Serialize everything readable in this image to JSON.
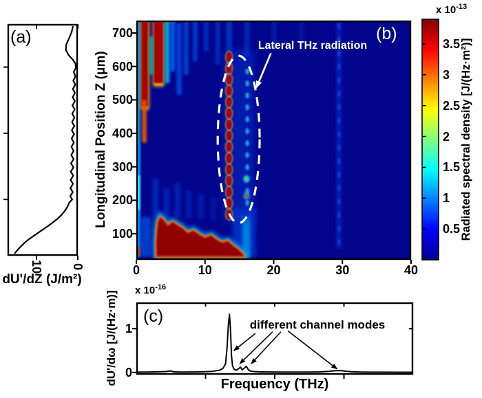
{
  "chart_data": [
    {
      "id": "panel_a",
      "type": "line",
      "title": "(a)",
      "xlabel": "dU'/dZ (J/m²)",
      "xlim": [
        17,
        0
      ],
      "x_ticks": [
        "10",
        "0"
      ],
      "ylim": [
        30,
        730
      ],
      "y_ticks_unlabeled": [
        600,
        400,
        200
      ],
      "points": [
        [
          1.2,
          722
        ],
        [
          1.5,
          705
        ],
        [
          2.2,
          685
        ],
        [
          2.8,
          668
        ],
        [
          2.9,
          652
        ],
        [
          2.2,
          636
        ],
        [
          1.2,
          622
        ],
        [
          0.55,
          610
        ],
        [
          0.5,
          597
        ],
        [
          1.0,
          585
        ],
        [
          0.55,
          572
        ],
        [
          1.1,
          559
        ],
        [
          0.6,
          547
        ],
        [
          1.2,
          534
        ],
        [
          0.7,
          522
        ],
        [
          1.25,
          509
        ],
        [
          0.7,
          497
        ],
        [
          1.3,
          484
        ],
        [
          0.75,
          472
        ],
        [
          1.35,
          459
        ],
        [
          0.8,
          447
        ],
        [
          1.4,
          434
        ],
        [
          0.85,
          422
        ],
        [
          1.45,
          409
        ],
        [
          0.9,
          397
        ],
        [
          1.5,
          384
        ],
        [
          0.95,
          372
        ],
        [
          1.55,
          359
        ],
        [
          1.0,
          347
        ],
        [
          1.6,
          334
        ],
        [
          1.0,
          322
        ],
        [
          1.65,
          309
        ],
        [
          1.05,
          297
        ],
        [
          1.7,
          284
        ],
        [
          1.1,
          272
        ],
        [
          1.75,
          259
        ],
        [
          1.15,
          247
        ],
        [
          1.8,
          234
        ],
        [
          1.2,
          222
        ],
        [
          1.85,
          210
        ],
        [
          1.35,
          200
        ],
        [
          2.1,
          190
        ],
        [
          2.5,
          178
        ],
        [
          3.1,
          166
        ],
        [
          3.9,
          154
        ],
        [
          4.9,
          142
        ],
        [
          6.1,
          130
        ],
        [
          7.4,
          118
        ],
        [
          8.8,
          106
        ],
        [
          10.2,
          94
        ],
        [
          11.6,
          82
        ],
        [
          12.8,
          70
        ],
        [
          13.8,
          58
        ],
        [
          14.6,
          47
        ],
        [
          15.2,
          38
        ]
      ]
    },
    {
      "id": "panel_b",
      "type": "heatmap",
      "title": "(b)",
      "ylabel": "Longitudinal Position Z (μm)",
      "xlim": [
        0,
        40
      ],
      "x_ticks": [
        "0",
        "10",
        "20",
        "30",
        "40"
      ],
      "ylim": [
        22,
        737
      ],
      "y_ticks": [
        "700",
        "600",
        "500",
        "400",
        "300",
        "200",
        "100"
      ],
      "background_color": "#01058D",
      "colormap": "jet",
      "colorbar": {
        "exp_base": "x 10",
        "exp_sup": "-13",
        "label": "Radiated spectral density [J/(Hz·m²)]",
        "range": [
          0,
          3.9
        ],
        "ticks": [
          "3.5",
          "3",
          "2.5",
          "2",
          "1.5",
          "1",
          "0.5"
        ],
        "jet_stops": [
          [
            "0%",
            "#00008F"
          ],
          [
            "12.5%",
            "#0000FF"
          ],
          [
            "37.5%",
            "#00FFFF"
          ],
          [
            "62.5%",
            "#FFFF00"
          ],
          [
            "87.5%",
            "#FF0000"
          ],
          [
            "100%",
            "#800000"
          ]
        ]
      },
      "annotation": {
        "text": "Lateral THz radiation",
        "arrow": [
          [
            19.6,
            640
          ],
          [
            17.5,
            538
          ]
        ],
        "ellipse": {
          "f": 14.9,
          "z": 382,
          "rf": 3.05,
          "rz": 250
        }
      },
      "bands": [
        [
          0.05,
          0.6,
          30,
          735,
          "#00a8ff",
          0.85,
          1
        ],
        [
          0.05,
          0.55,
          170,
          275,
          "#40e8ff",
          0.9,
          1
        ],
        [
          0.1,
          0.6,
          35,
          60,
          "#dd3300",
          0.9,
          1
        ],
        [
          0.65,
          1.85,
          470,
          745,
          "#ffc400",
          0.95,
          2.5
        ],
        [
          0.75,
          1.7,
          480,
          742,
          "#a80000",
          1,
          1
        ],
        [
          2.45,
          4.05,
          540,
          745,
          "#ffc400",
          0.95,
          2.5
        ],
        [
          2.55,
          3.9,
          550,
          742,
          "#a80000",
          1,
          1
        ],
        [
          1.85,
          2.45,
          575,
          690,
          "#00c8b0",
          0.75,
          1.5
        ],
        [
          0.8,
          1.5,
          372,
          500,
          "#e05500",
          0.95,
          1.5
        ],
        [
          4.15,
          4.85,
          550,
          745,
          "#00c8f0",
          0.8,
          1.5
        ],
        [
          4.95,
          5.65,
          585,
          748,
          "#0070f8",
          0.8,
          1.5
        ],
        [
          5.85,
          6.6,
          515,
          730,
          "#0052e8",
          0.75,
          1.5
        ],
        [
          6.9,
          7.6,
          575,
          748,
          "#005cee",
          0.65,
          1.5
        ],
        [
          8.2,
          8.9,
          615,
          748,
          "#0046d8",
          0.75,
          1.5
        ],
        [
          9.8,
          10.5,
          645,
          745,
          "#003ed0",
          0.65,
          1.5
        ],
        [
          11.5,
          12.2,
          605,
          748,
          "#0040d2",
          0.6,
          1.5
        ],
        [
          13.1,
          13.9,
          645,
          745,
          "#0048da",
          0.65,
          1.5
        ],
        [
          15.7,
          16.5,
          628,
          742,
          "#0038c8",
          0.65,
          1.5
        ],
        [
          19.7,
          20.4,
          650,
          740,
          "#0030c0",
          0.55,
          1.5
        ],
        [
          23.7,
          24.4,
          668,
          738,
          "#002cba",
          0.45,
          1.5
        ],
        [
          29.1,
          29.9,
          55,
          740,
          "#0028b6",
          0.75,
          1.5
        ],
        [
          2.4,
          3.2,
          150,
          265,
          "#0040d8",
          0.6,
          2
        ],
        [
          4.0,
          4.8,
          150,
          235,
          "#0040d8",
          0.55,
          2
        ],
        [
          5.6,
          6.4,
          150,
          250,
          "#0040d8",
          0.55,
          2
        ],
        [
          7.2,
          8.0,
          148,
          228,
          "#0038d0",
          0.5,
          2
        ],
        [
          9.0,
          9.8,
          145,
          218,
          "#0038d0",
          0.45,
          2
        ],
        [
          10.8,
          11.6,
          140,
          208,
          "#0034c8",
          0.4,
          2
        ],
        [
          0.6,
          2.1,
          32,
          150,
          "#0052e8",
          0.7,
          2
        ],
        [
          14.0,
          17.4,
          30,
          175,
          "#0048e0",
          0.6,
          3
        ],
        [
          15.4,
          16.6,
          30,
          152,
          "#00a0f0",
          0.7,
          2
        ],
        [
          12.6,
          17.2,
          135,
          650,
          "#0032cc",
          0.5,
          4
        ]
      ],
      "blob": [
        [
          2.95,
          32
        ],
        [
          2.9,
          70
        ],
        [
          3.0,
          105
        ],
        [
          3.15,
          135
        ],
        [
          3.5,
          150
        ],
        [
          4.0,
          140
        ],
        [
          4.6,
          125
        ],
        [
          5.3,
          135
        ],
        [
          6.0,
          126
        ],
        [
          6.8,
          115
        ],
        [
          7.5,
          102
        ],
        [
          8.3,
          110
        ],
        [
          9.2,
          97
        ],
        [
          10.0,
          88
        ],
        [
          10.9,
          95
        ],
        [
          11.7,
          82
        ],
        [
          12.5,
          73
        ],
        [
          13.3,
          78
        ],
        [
          14.1,
          64
        ],
        [
          14.9,
          52
        ],
        [
          15.5,
          40
        ],
        [
          15.7,
          32
        ]
      ],
      "chains": [
        {
          "f": 13.5,
          "z1": 158,
          "z2": 628,
          "n": 15,
          "rf": 0.33,
          "rz": 14,
          "fill": "#b80000",
          "ring": "#ff9900",
          "opacity": 1
        },
        {
          "f": 16.15,
          "z1": 192,
          "z2": 585,
          "n": 12,
          "rf": 0.28,
          "rz": 9,
          "fill": "#28b0f0",
          "opacity": 0.85
        },
        {
          "f": 29.5,
          "z1": 75,
          "z2": 720,
          "n": 17,
          "rf": 0.24,
          "rz": 10,
          "fill": "#1f35d8",
          "opacity": 0.9
        }
      ],
      "accent_dots": [
        [
          16.0,
          264,
          "#50d850"
        ],
        [
          16.05,
          213,
          "#e04000"
        ]
      ]
    },
    {
      "id": "panel_c",
      "type": "line",
      "title": "(c)",
      "exp_base": "x 10",
      "exp_sup": "-16",
      "ylabel": "dU'/dω [J/(Hz·m)]",
      "xlabel": "Frequency (THz)",
      "xlim": [
        0,
        40
      ],
      "x_ticks_minor": [
        "10",
        "20",
        "30"
      ],
      "ylim": [
        -0.05,
        1.6
      ],
      "y_ticks": [
        "1",
        "0"
      ],
      "annotation": {
        "text": "different channel modes",
        "arrows": [
          [
            17.2,
            0.89,
            14.1,
            0.5
          ],
          [
            19.7,
            0.93,
            14.95,
            0.2
          ],
          [
            20.9,
            0.93,
            16.6,
            0.2
          ],
          [
            21.9,
            0.95,
            29.0,
            0.08
          ]
        ]
      },
      "points": [
        [
          0,
          0.01
        ],
        [
          1.5,
          0.01
        ],
        [
          3,
          0.015
        ],
        [
          4.3,
          0.02
        ],
        [
          4.9,
          0.035
        ],
        [
          5.4,
          0.015
        ],
        [
          6.5,
          0.01
        ],
        [
          8,
          0.012
        ],
        [
          9.5,
          0.015
        ],
        [
          11,
          0.025
        ],
        [
          12,
          0.05
        ],
        [
          12.5,
          0.09
        ],
        [
          12.9,
          0.2
        ],
        [
          13.1,
          0.55
        ],
        [
          13.3,
          1.1
        ],
        [
          13.45,
          1.33
        ],
        [
          13.6,
          1.0
        ],
        [
          13.75,
          0.38
        ],
        [
          13.9,
          0.15
        ],
        [
          14.15,
          0.07
        ],
        [
          14.5,
          0.05
        ],
        [
          14.8,
          0.09
        ],
        [
          15.05,
          0.12
        ],
        [
          15.3,
          0.06
        ],
        [
          15.6,
          0.1
        ],
        [
          15.9,
          0.14
        ],
        [
          16.2,
          0.06
        ],
        [
          16.5,
          0.03
        ],
        [
          17,
          0.02
        ],
        [
          18,
          0.013
        ],
        [
          19.5,
          0.012
        ],
        [
          21,
          0.01
        ],
        [
          23,
          0.009
        ],
        [
          25,
          0.01
        ],
        [
          26.5,
          0.013
        ],
        [
          27.8,
          0.025
        ],
        [
          28.8,
          0.04
        ],
        [
          29.5,
          0.042
        ],
        [
          30.2,
          0.03
        ],
        [
          31,
          0.018
        ],
        [
          32.5,
          0.01
        ],
        [
          34,
          0.007
        ],
        [
          36,
          0.006
        ],
        [
          38,
          0.005
        ],
        [
          40,
          0.005
        ]
      ]
    }
  ]
}
